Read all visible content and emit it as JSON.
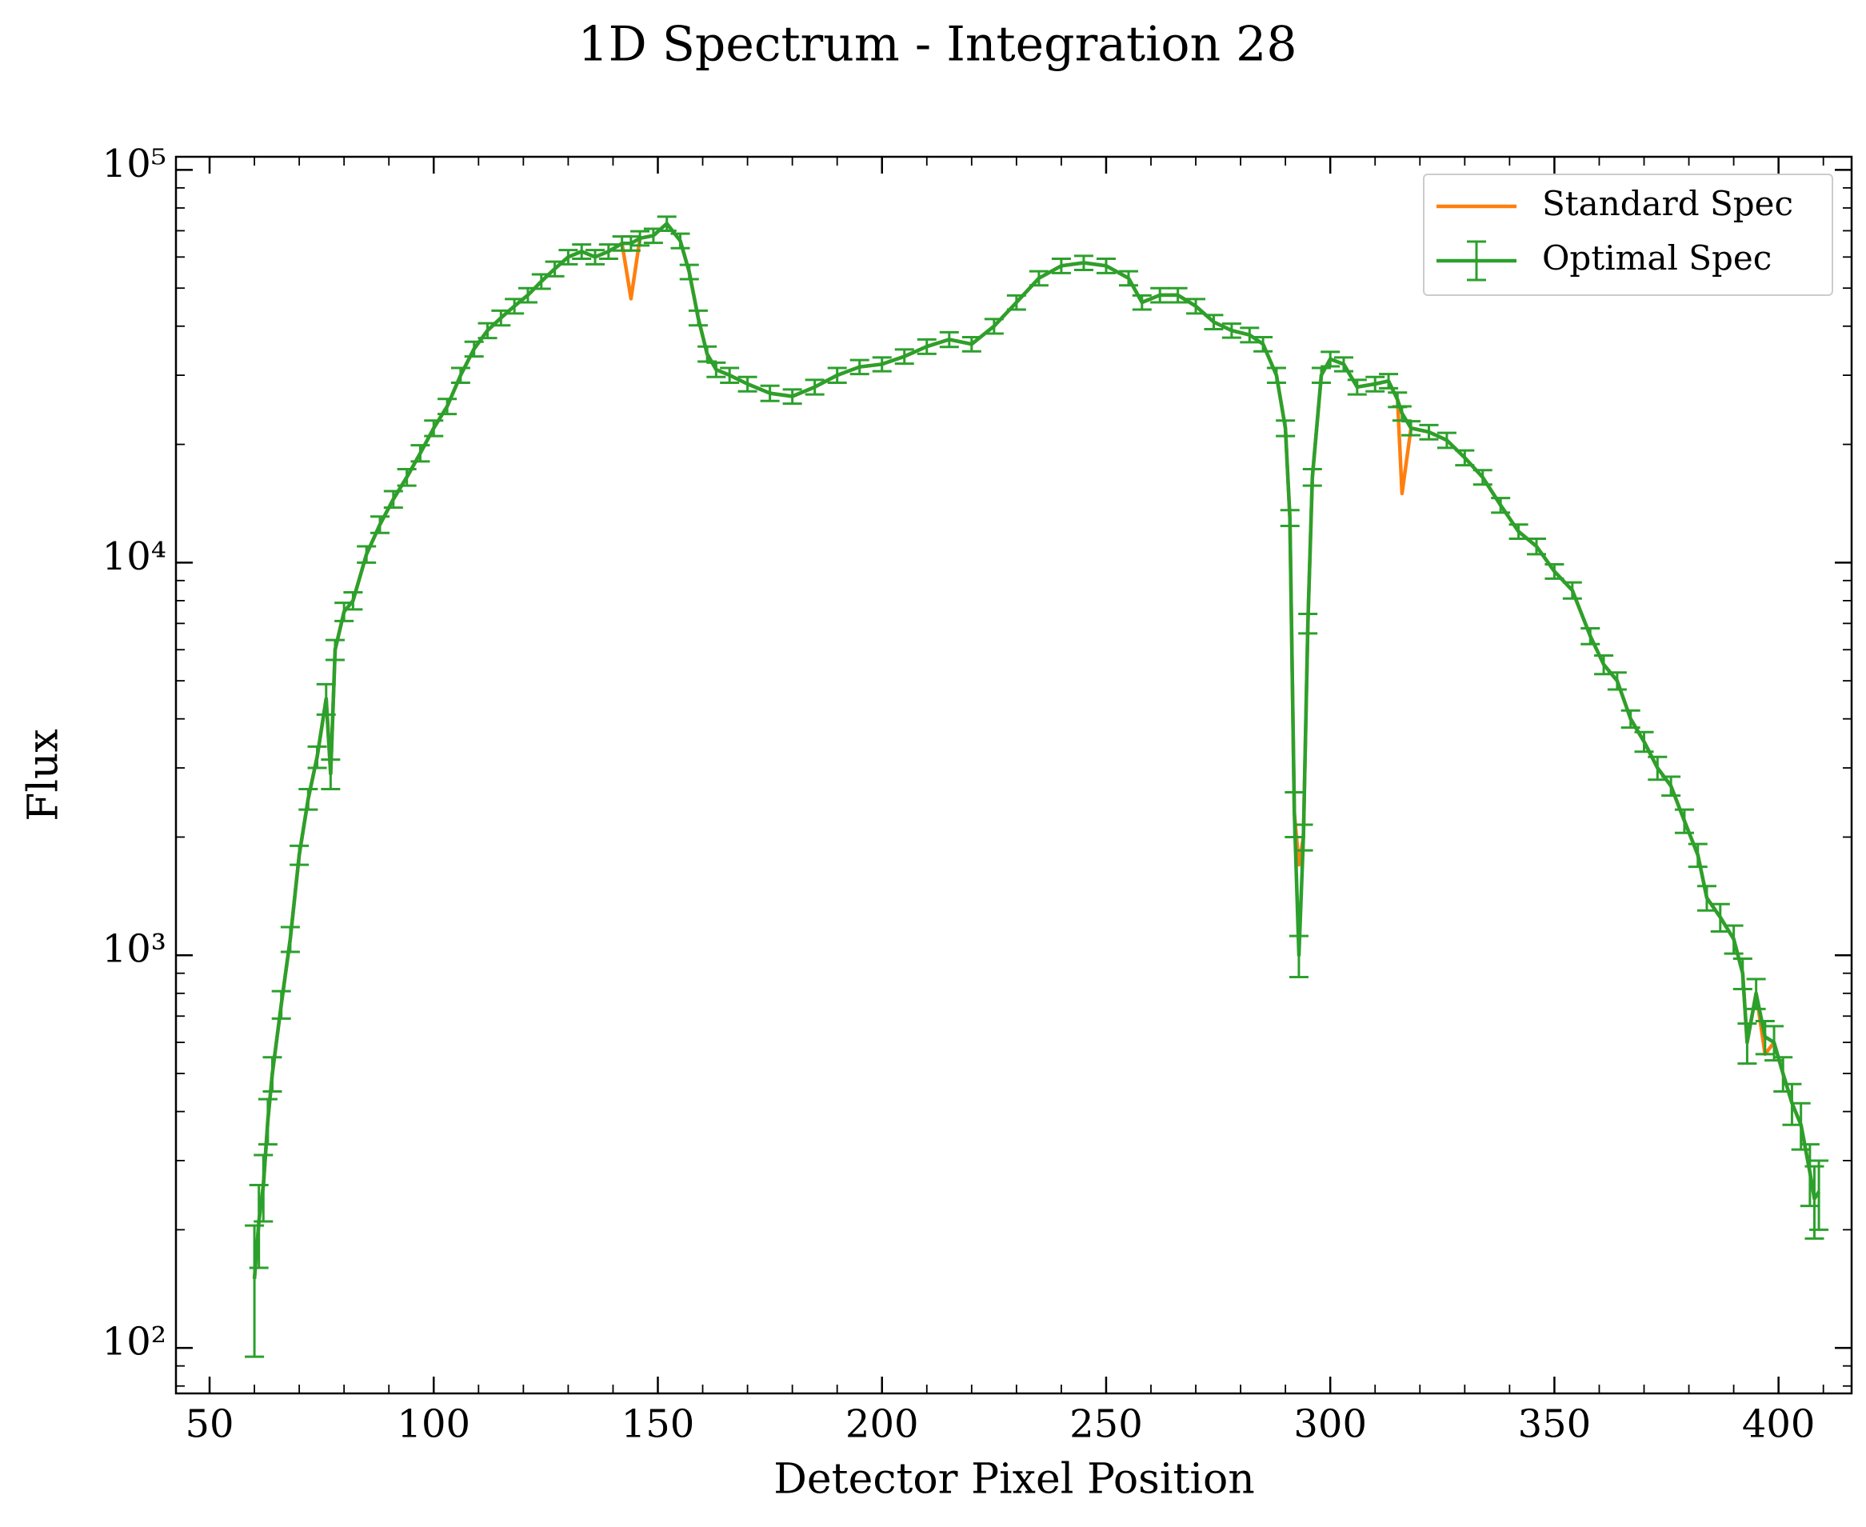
{
  "chart_data": {
    "type": "errorbar-line",
    "title": "1D Spectrum - Integration 28",
    "x_label": "Detector Pixel Position",
    "y_label": "Flux",
    "log_y": true,
    "legend": "upper right",
    "xlim": [
      42.5,
      416.3
    ],
    "ylim": [
      76.6,
      108000
    ],
    "xticks": [
      50,
      100,
      150,
      200,
      250,
      300,
      350,
      400
    ],
    "yticks": [
      {
        "value": 100,
        "label": "10²"
      },
      {
        "value": 1000,
        "label": "10³"
      },
      {
        "value": 10000,
        "label": "10⁴"
      },
      {
        "value": 100000,
        "label": "10⁵"
      }
    ],
    "x": [
      60,
      61,
      62,
      63,
      64,
      66,
      68,
      70,
      72,
      74,
      76,
      77,
      78,
      80,
      82,
      85,
      88,
      91,
      94,
      97,
      100,
      103,
      106,
      109,
      112,
      115,
      118,
      121,
      124,
      127,
      130,
      133,
      136,
      139,
      142,
      144,
      146,
      149,
      152,
      155,
      157,
      159,
      161,
      163,
      166,
      170,
      175,
      180,
      185,
      190,
      195,
      200,
      205,
      210,
      215,
      220,
      225,
      230,
      235,
      240,
      245,
      250,
      255,
      258,
      262,
      266,
      270,
      274,
      278,
      282,
      285,
      288,
      290,
      291,
      292,
      293,
      294,
      295,
      296,
      298,
      300,
      303,
      306,
      310,
      313,
      315,
      316,
      318,
      322,
      326,
      330,
      334,
      338,
      342,
      346,
      350,
      354,
      358,
      361,
      364,
      367,
      370,
      373,
      376,
      379,
      382,
      384,
      387,
      390,
      392,
      393,
      395,
      397,
      399,
      401,
      403,
      405,
      407,
      408,
      409
    ],
    "series": [
      {
        "name": "Standard Spec",
        "color": "#ff7f0e",
        "values": [
          150,
          210,
          260,
          380,
          500,
          750,
          1100,
          1800,
          2500,
          3200,
          4500,
          2900,
          6000,
          7500,
          8000,
          10500,
          12500,
          14500,
          16500,
          19000,
          22000,
          25000,
          30000,
          35000,
          39000,
          42000,
          45000,
          48000,
          52000,
          56000,
          60000,
          62000,
          60000,
          62000,
          65000,
          47000,
          67000,
          68000,
          73000,
          66000,
          55000,
          42000,
          34000,
          31000,
          30000,
          28500,
          27000,
          26500,
          28000,
          30000,
          31500,
          32000,
          33500,
          35500,
          37000,
          36000,
          40000,
          46000,
          53000,
          57000,
          58000,
          57000,
          53000,
          46000,
          48000,
          48000,
          45000,
          41000,
          39000,
          38000,
          36000,
          30000,
          22000,
          13000,
          2300,
          1700,
          2000,
          7000,
          16500,
          30000,
          33000,
          32000,
          28000,
          28500,
          29000,
          26000,
          15000,
          22000,
          21500,
          20500,
          18500,
          16500,
          14000,
          12000,
          11000,
          9500,
          8500,
          6500,
          5500,
          5000,
          4000,
          3500,
          3000,
          2700,
          2200,
          1800,
          1400,
          1250,
          1100,
          900,
          600,
          800,
          560,
          600,
          500,
          420,
          370,
          280,
          240,
          250
        ]
      },
      {
        "name": "Optimal Spec",
        "color": "#2ca02c",
        "values": [
          150,
          210,
          260,
          380,
          500,
          750,
          1100,
          1800,
          2500,
          3200,
          4500,
          2900,
          6000,
          7500,
          8000,
          10500,
          12500,
          14500,
          16500,
          19000,
          22000,
          25000,
          30000,
          35000,
          39000,
          42000,
          45000,
          48000,
          52000,
          56000,
          60000,
          62000,
          60000,
          62000,
          65000,
          65000,
          67000,
          68000,
          73000,
          66000,
          55000,
          42000,
          34000,
          31000,
          30000,
          28500,
          27000,
          26500,
          28000,
          30000,
          31500,
          32000,
          33500,
          35500,
          37000,
          36000,
          40000,
          46000,
          53000,
          57000,
          58000,
          57000,
          53000,
          46000,
          48000,
          48000,
          45000,
          41000,
          39000,
          38000,
          36000,
          30000,
          22000,
          13000,
          2300,
          1000,
          2000,
          7000,
          16500,
          30000,
          33000,
          32000,
          28000,
          28500,
          29000,
          26000,
          24000,
          22000,
          21500,
          20500,
          18500,
          16500,
          14000,
          12000,
          11000,
          9500,
          8500,
          6500,
          5500,
          5000,
          4000,
          3500,
          3000,
          2700,
          2200,
          1800,
          1400,
          1250,
          1100,
          900,
          600,
          800,
          620,
          600,
          500,
          420,
          370,
          280,
          240,
          250
        ],
        "errors": [
          55,
          50,
          50,
          50,
          50,
          60,
          80,
          100,
          150,
          200,
          400,
          250,
          350,
          400,
          400,
          500,
          600,
          700,
          800,
          900,
          1000,
          1100,
          1300,
          1500,
          1700,
          1800,
          1900,
          2000,
          2200,
          2400,
          2500,
          2600,
          2500,
          2600,
          2700,
          2700,
          2800,
          2800,
          3000,
          2800,
          2300,
          1800,
          1500,
          1300,
          1300,
          1200,
          1200,
          1100,
          1200,
          1300,
          1300,
          1300,
          1400,
          1500,
          1600,
          1500,
          1700,
          1900,
          2200,
          2400,
          2400,
          2400,
          2200,
          1900,
          2000,
          2000,
          1900,
          1700,
          1600,
          1600,
          1500,
          1300,
          1000,
          600,
          300,
          120,
          150,
          400,
          800,
          1300,
          1400,
          1300,
          1200,
          1200,
          1200,
          1100,
          1000,
          900,
          900,
          900,
          800,
          700,
          600,
          500,
          500,
          400,
          400,
          300,
          300,
          250,
          200,
          200,
          200,
          150,
          150,
          120,
          100,
          100,
          90,
          80,
          70,
          70,
          60,
          60,
          50,
          50,
          50,
          50,
          50,
          50
        ]
      }
    ]
  }
}
